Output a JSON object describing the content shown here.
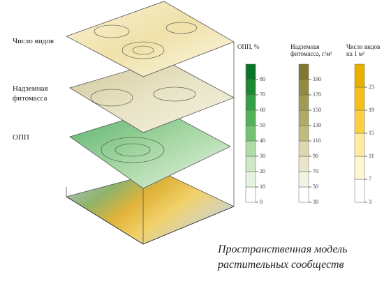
{
  "layer_labels": [
    [
      "Число видов"
    ],
    [
      "Надземная",
      "фитомасса"
    ],
    [
      "ОПП"
    ]
  ],
  "legends": [
    {
      "title": [
        "ОПП, %"
      ],
      "ticks": [
        "0",
        "10",
        "20",
        "30",
        "40",
        "50",
        "60",
        "70",
        "80"
      ]
    },
    {
      "title": [
        "Надземная",
        "фитомасса, г/м²"
      ],
      "ticks": [
        "30",
        "50",
        "70",
        "90",
        "110",
        "130",
        "150",
        "170",
        "190"
      ]
    },
    {
      "title": [
        "Число видов",
        "на 1 м²"
      ],
      "ticks": [
        "3",
        "7",
        "11",
        "15",
        "19",
        "23"
      ]
    }
  ],
  "caption": [
    "Пространственная модель",
    "растительных сообществ"
  ]
}
